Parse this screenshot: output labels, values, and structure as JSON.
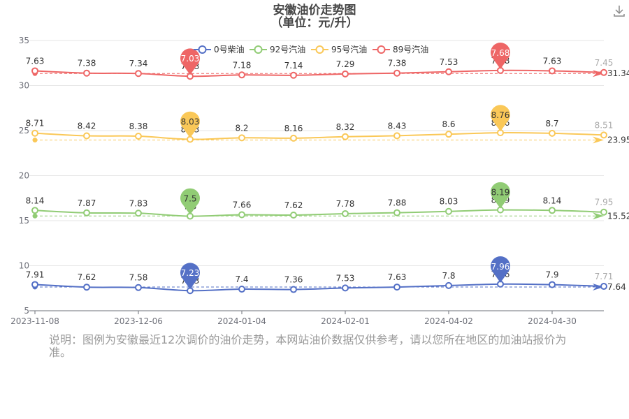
{
  "chart_data": {
    "type": "line",
    "title": "安徽油价走势图",
    "subtitle": "（单位：元/升）",
    "legend_position": "top-center",
    "grid": true,
    "y_axis": {
      "ticks": [
        5,
        10,
        15,
        20,
        25,
        30,
        35
      ],
      "ylim": [
        5,
        35
      ]
    },
    "x_axis": {
      "tick_labels": [
        "2023-11-08",
        "2023-12-06",
        "2024-01-04",
        "2024-02-01",
        "2024-04-02",
        "2024-04-30"
      ],
      "tick_positions": [
        0,
        2,
        4,
        6,
        8,
        10
      ]
    },
    "points_count": 12,
    "pin_index": 3,
    "pin2_index": 9,
    "series": [
      {
        "name": "0号柴油",
        "color": "#5470c6",
        "values": [
          7.91,
          7.62,
          7.58,
          7.23,
          7.4,
          7.36,
          7.53,
          7.63,
          7.8,
          7.96,
          7.9,
          7.71
        ],
        "labels": [
          "7.91",
          "7.62",
          "7.58",
          "7.23",
          "7.4",
          "7.36",
          "7.53",
          "7.63",
          "7.8",
          "7.96",
          "7.9",
          "7.71"
        ],
        "offset": 0,
        "avg_label": "7.64",
        "avg_value": 7.64
      },
      {
        "name": "92号汽油",
        "color": "#91cc75",
        "values": [
          8.14,
          7.87,
          7.83,
          7.5,
          7.66,
          7.62,
          7.78,
          7.88,
          8.03,
          8.19,
          8.14,
          7.95
        ],
        "labels": [
          "8.14",
          "7.87",
          "7.83",
          "7.5",
          "7.66",
          "7.62",
          "7.78",
          "7.88",
          "8.03",
          "8.19",
          "8.14",
          "7.95"
        ],
        "offset": 8,
        "avg_label": "15.52",
        "avg_value": 15.52
      },
      {
        "name": "95号汽油",
        "color": "#fac858",
        "values": [
          8.71,
          8.42,
          8.38,
          8.03,
          8.2,
          8.16,
          8.32,
          8.43,
          8.6,
          8.76,
          8.7,
          8.51
        ],
        "labels": [
          "8.71",
          "8.42",
          "8.38",
          "8.03",
          "8.2",
          "8.16",
          "8.32",
          "8.43",
          "8.6",
          "8.76",
          "8.7",
          "8.51"
        ],
        "offset": 16,
        "avg_label": "23.95",
        "avg_value": 23.95
      },
      {
        "name": "89号汽油",
        "color": "#ee6666",
        "values": [
          7.63,
          7.38,
          7.34,
          7.03,
          7.18,
          7.14,
          7.29,
          7.38,
          7.53,
          7.68,
          7.63,
          7.45
        ],
        "labels": [
          "7.63",
          "7.38",
          "7.34",
          "7.03",
          "7.18",
          "7.14",
          "7.29",
          "7.38",
          "7.53",
          "7.68",
          "7.63",
          "7.45"
        ],
        "offset": 24,
        "avg_label": "31.34",
        "avg_value": 31.34
      }
    ]
  },
  "footnote": "说明：图例为安徽最近12次调价的油价走势，本网站油价数据仅供参考，请以您所在地区的加油站报价为准。",
  "toolbar": {
    "download_icon": "download-icon"
  }
}
